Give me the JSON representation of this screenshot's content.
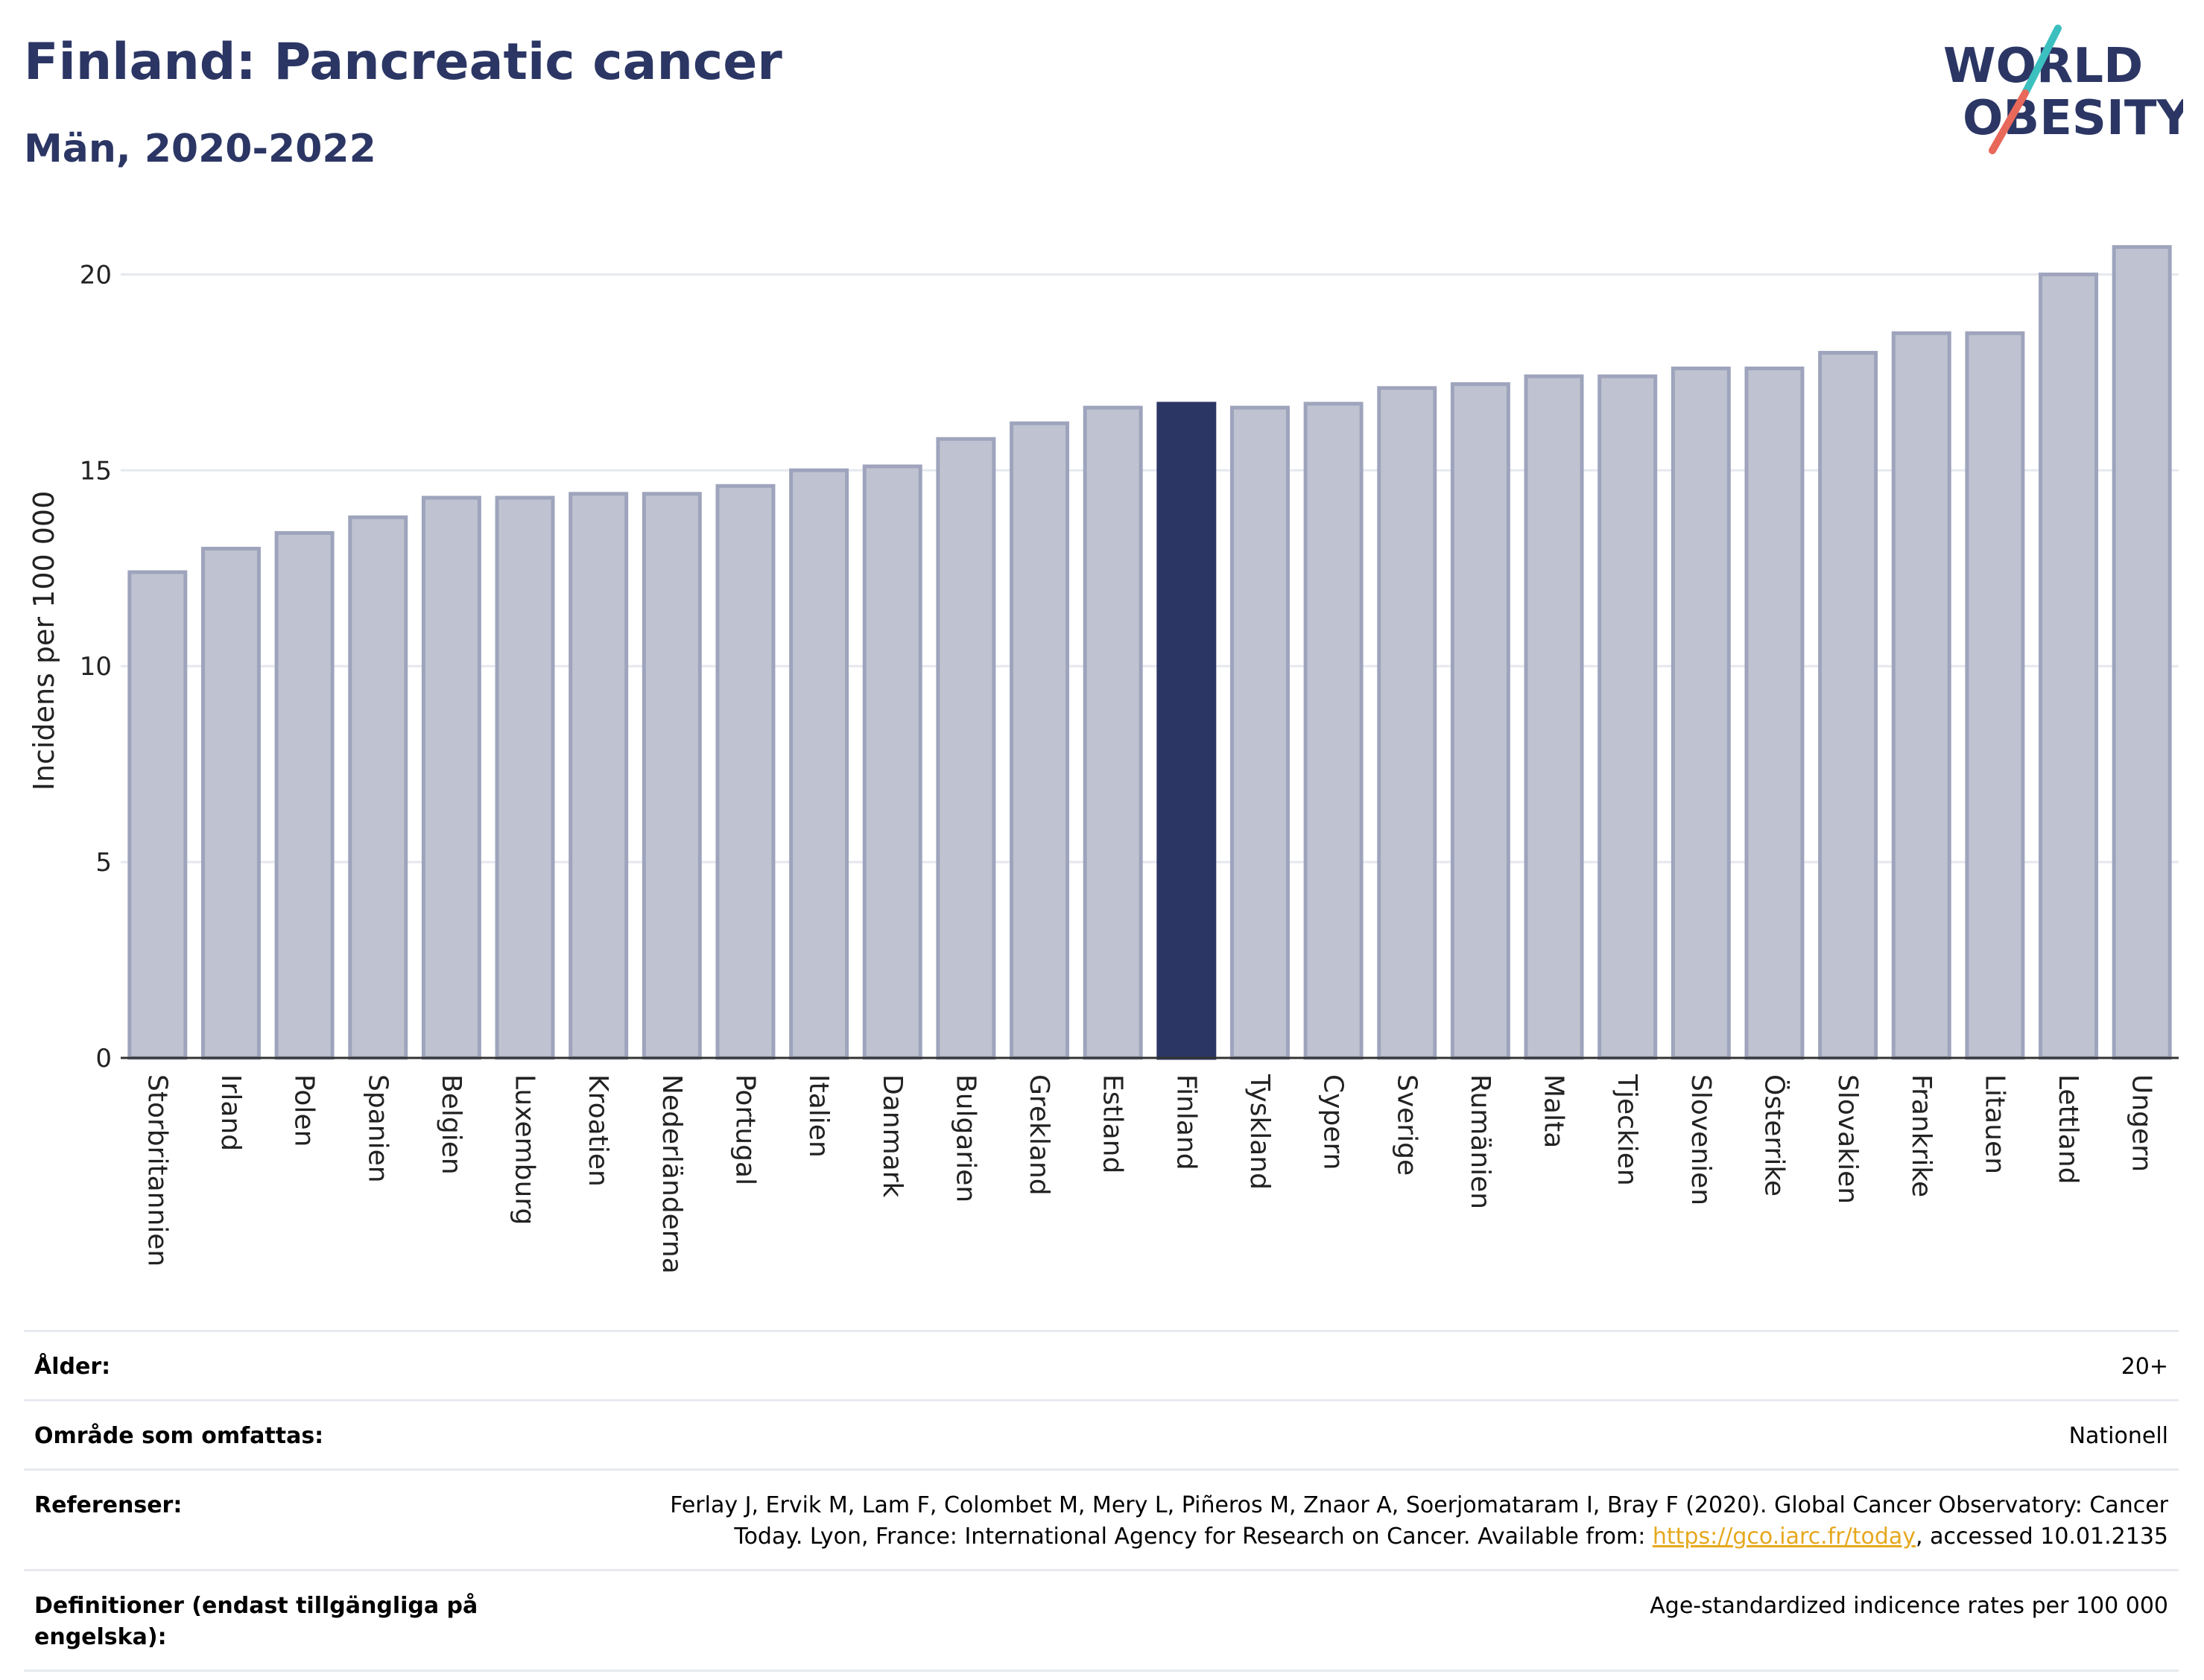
{
  "header": {
    "title": "Finland: Pancreatic cancer",
    "subtitle": "Män, 2020-2022",
    "logo_line1": "WORLD",
    "logo_line2": "OBESITY"
  },
  "colors": {
    "highlight": "#2b3664",
    "bar_fill": "#bfc3d1",
    "bar_stroke": "#9ea4bc",
    "grid": "#e6e8ef",
    "logo_teal": "#3cbfbf",
    "logo_coral": "#e8685a",
    "link": "#e6a81e"
  },
  "chart_data": {
    "type": "bar",
    "ylabel": "Incidens per 100 000",
    "ylim": [
      0,
      21.3
    ],
    "yticks": [
      0,
      5,
      10,
      15,
      20
    ],
    "highlight": "Finland",
    "grid": true,
    "categories": [
      "Storbritannien",
      "Irland",
      "Polen",
      "Spanien",
      "Belgien",
      "Luxemburg",
      "Kroatien",
      "Nederländerna",
      "Portugal",
      "Italien",
      "Danmark",
      "Bulgarien",
      "Grekland",
      "Estland",
      "Finland",
      "Tyskland",
      "Cypern",
      "Sverige",
      "Rumänien",
      "Malta",
      "Tjeckien",
      "Slovenien",
      "Österrike",
      "Slovakien",
      "Frankrike",
      "Litauen",
      "Lettland",
      "Ungern"
    ],
    "values": [
      12.4,
      13.0,
      13.4,
      13.8,
      14.3,
      14.3,
      14.4,
      14.4,
      14.6,
      15.0,
      15.1,
      15.8,
      16.2,
      16.6,
      16.7,
      16.6,
      16.7,
      17.1,
      17.2,
      17.4,
      17.4,
      17.6,
      17.6,
      18.0,
      18.5,
      18.5,
      20.0,
      20.7
    ]
  },
  "meta": {
    "age_label": "Ålder:",
    "age_value": "20+",
    "area_label": "Område som omfattas:",
    "area_value": "Nationell",
    "ref_label": "Referenser:",
    "ref_text_1": "Ferlay J, Ervik M, Lam F, Colombet M, Mery L, Piñeros M, Znaor A, Soerjomataram I, Bray F (2020). Global Cancer Observatory: Cancer Today. Lyon, France: International Agency for Research on Cancer. Available from: ",
    "ref_link": "https://gco.iarc.fr/today",
    "ref_text_2": ", accessed 10.01.2135",
    "def_label": "Definitioner (endast tillgängliga på engelska):",
    "def_value": "Age-standardized indicence rates per 100 000"
  }
}
